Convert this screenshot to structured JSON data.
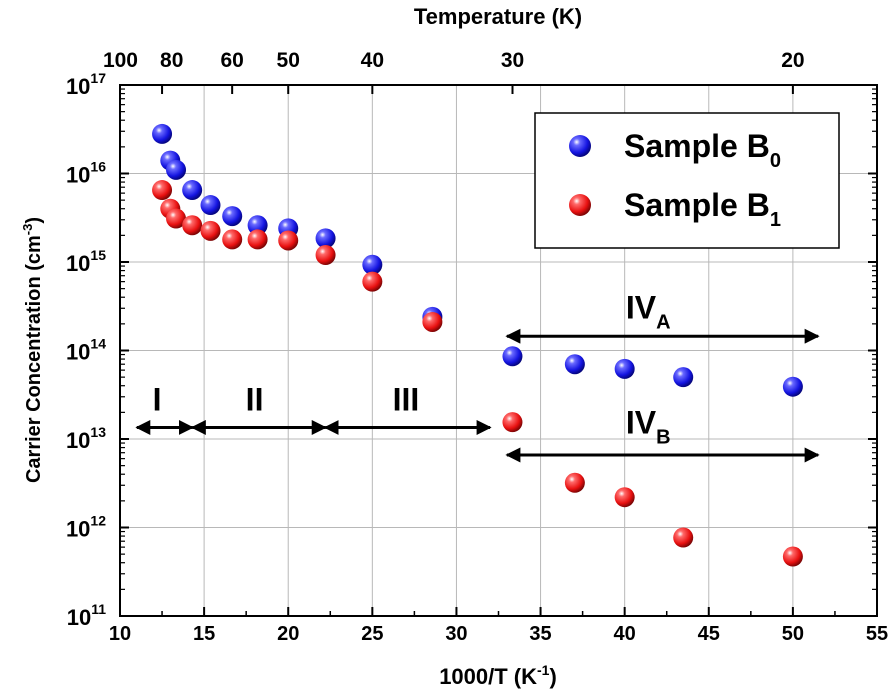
{
  "chart_data": {
    "type": "scatter",
    "xlabel": "1000/T (K",
    "xlabel_sup": "-1",
    "xlabel_suffix": ")",
    "ylabel": "Carrier Concentration (cm",
    "ylabel_sup": "-3",
    "ylabel_suffix": ")",
    "top_axis_title": "Temperature (K)",
    "top_ticks": [
      {
        "label": "100",
        "x": 10
      },
      {
        "label": "80",
        "x": 12.5
      },
      {
        "label": "60",
        "x": 16.667
      },
      {
        "label": "50",
        "x": 20
      },
      {
        "label": "40",
        "x": 25
      },
      {
        "label": "30",
        "x": 33.333
      },
      {
        "label": "20",
        "x": 50
      }
    ],
    "xlim": [
      10,
      55
    ],
    "x_ticks": [
      10,
      15,
      20,
      25,
      30,
      35,
      40,
      45,
      50,
      55
    ],
    "y_scale": "log",
    "ylim": [
      100000000000.0,
      1e+17
    ],
    "y_ticks": [
      {
        "base": "10",
        "exp": "11",
        "value": 100000000000.0
      },
      {
        "base": "10",
        "exp": "12",
        "value": 1000000000000.0
      },
      {
        "base": "10",
        "exp": "13",
        "value": 10000000000000.0
      },
      {
        "base": "10",
        "exp": "14",
        "value": 100000000000000.0
      },
      {
        "base": "10",
        "exp": "15",
        "value": 1000000000000000.0
      },
      {
        "base": "10",
        "exp": "16",
        "value": 1e+16
      },
      {
        "base": "10",
        "exp": "17",
        "value": 1e+17
      }
    ],
    "grid": true,
    "legend_position": "top-right",
    "series": [
      {
        "name": "Sample B",
        "name_sub": "0",
        "color": "#1515e8",
        "points": [
          [
            12.5,
            2.8e+16
          ],
          [
            12.99,
            1.4e+16
          ],
          [
            13.33,
            1.1e+16
          ],
          [
            14.29,
            6500000000000000.0
          ],
          [
            15.38,
            4400000000000000.0
          ],
          [
            16.67,
            3300000000000000.0
          ],
          [
            18.18,
            2600000000000000.0
          ],
          [
            20.0,
            2400000000000000.0
          ],
          [
            22.22,
            1850000000000000.0
          ],
          [
            25.0,
            930000000000000.0
          ],
          [
            28.57,
            240000000000000.0
          ],
          [
            33.33,
            86000000000000.0
          ],
          [
            37.04,
            70000000000000.0
          ],
          [
            40.0,
            62000000000000.0
          ],
          [
            43.48,
            50000000000000.0
          ],
          [
            50.0,
            39000000000000.0
          ]
        ]
      },
      {
        "name": "Sample B",
        "name_sub": "1",
        "color": "#ee1515",
        "points": [
          [
            12.5,
            6500000000000000.0
          ],
          [
            12.99,
            4000000000000000.0
          ],
          [
            13.33,
            3100000000000000.0
          ],
          [
            14.29,
            2600000000000000.0
          ],
          [
            15.38,
            2250000000000000.0
          ],
          [
            16.67,
            1800000000000000.0
          ],
          [
            18.18,
            1800000000000000.0
          ],
          [
            20.0,
            1750000000000000.0
          ],
          [
            22.22,
            1200000000000000.0
          ],
          [
            25.0,
            600000000000000.0
          ],
          [
            28.57,
            210000000000000.0
          ],
          [
            33.33,
            15500000000000.0
          ],
          [
            37.04,
            3200000000000.0
          ],
          [
            40.0,
            2200000000000.0
          ],
          [
            43.48,
            770000000000.0
          ],
          [
            50.0,
            470000000000.0
          ]
        ]
      }
    ],
    "annotations": [
      {
        "label": "I",
        "sub": "",
        "x": 12.2,
        "y": 21000000000000.0
      },
      {
        "label": "II",
        "sub": "",
        "x": 18.0,
        "y": 21000000000000.0
      },
      {
        "label": "III",
        "sub": "",
        "x": 27.0,
        "y": 21000000000000.0
      },
      {
        "label": "IV",
        "sub": "A",
        "x": 41.4,
        "y": 230000000000000.0
      },
      {
        "label": "IV",
        "sub": "B",
        "x": 41.4,
        "y": 11500000000000.0
      }
    ],
    "arrows": [
      {
        "x1": 11.0,
        "x2": 14.3,
        "y": 13500000000000.0
      },
      {
        "x1": 14.3,
        "x2": 22.2,
        "y": 13500000000000.0
      },
      {
        "x1": 22.2,
        "x2": 32.0,
        "y": 13500000000000.0
      },
      {
        "x1": 33.0,
        "x2": 51.5,
        "y": 145000000000000.0
      },
      {
        "x1": 33.0,
        "x2": 51.5,
        "y": 6600000000000.0
      }
    ]
  }
}
